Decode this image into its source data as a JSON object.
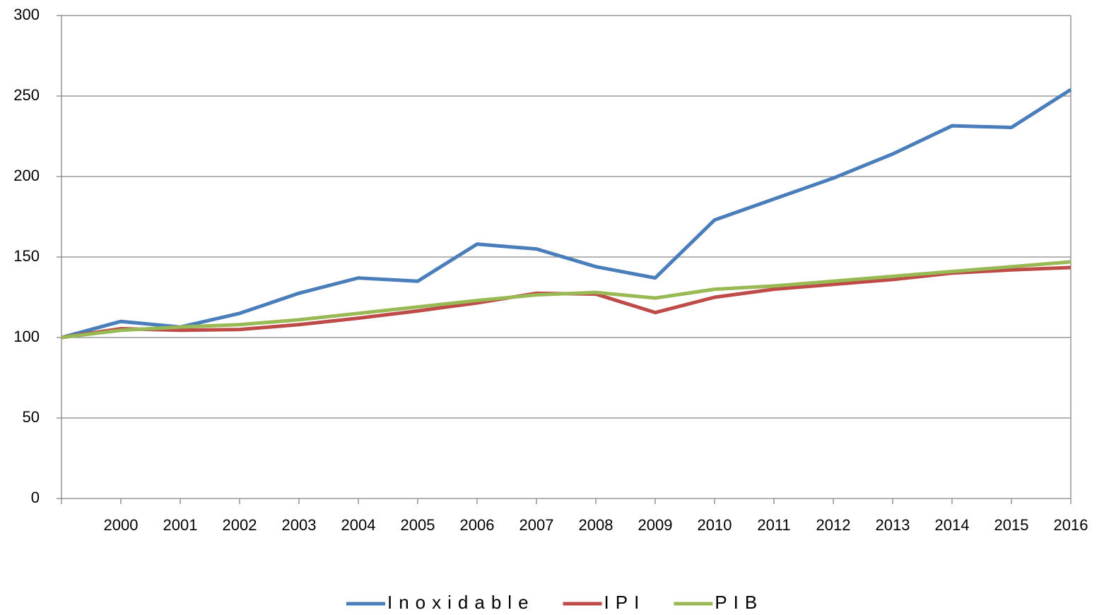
{
  "chart_data": {
    "type": "line",
    "categories": [
      null,
      "2000",
      "2001",
      "2002",
      "2003",
      "2004",
      "2005",
      "2006",
      "2007",
      "2008",
      "2009",
      "2010",
      "2011",
      "2012",
      "2013",
      "2014",
      "2015",
      "2016"
    ],
    "series": [
      {
        "name": "Inoxidable",
        "color": "#4a7ebb",
        "values": [
          100,
          110,
          106.5,
          115,
          127.5,
          137,
          135,
          158,
          155,
          144,
          137,
          173,
          186,
          199,
          214,
          231.5,
          230.5,
          254
        ]
      },
      {
        "name": "IPI",
        "color": "#be4b48",
        "values": [
          100,
          105.5,
          104.5,
          105,
          108,
          112,
          116.5,
          121.5,
          127.5,
          127,
          115.5,
          125,
          130,
          133,
          136,
          140,
          142,
          143.5
        ]
      },
      {
        "name": "PIB",
        "color": "#98b954",
        "values": [
          100,
          104.5,
          106.5,
          108,
          111,
          115,
          119,
          123,
          126.5,
          128,
          124.5,
          130,
          132,
          135,
          138,
          141,
          144,
          147
        ]
      }
    ],
    "ylim": [
      0,
      300
    ],
    "yticks": [
      0,
      50,
      100,
      150,
      200,
      250,
      300
    ],
    "grid": true,
    "legend": "bottom"
  }
}
